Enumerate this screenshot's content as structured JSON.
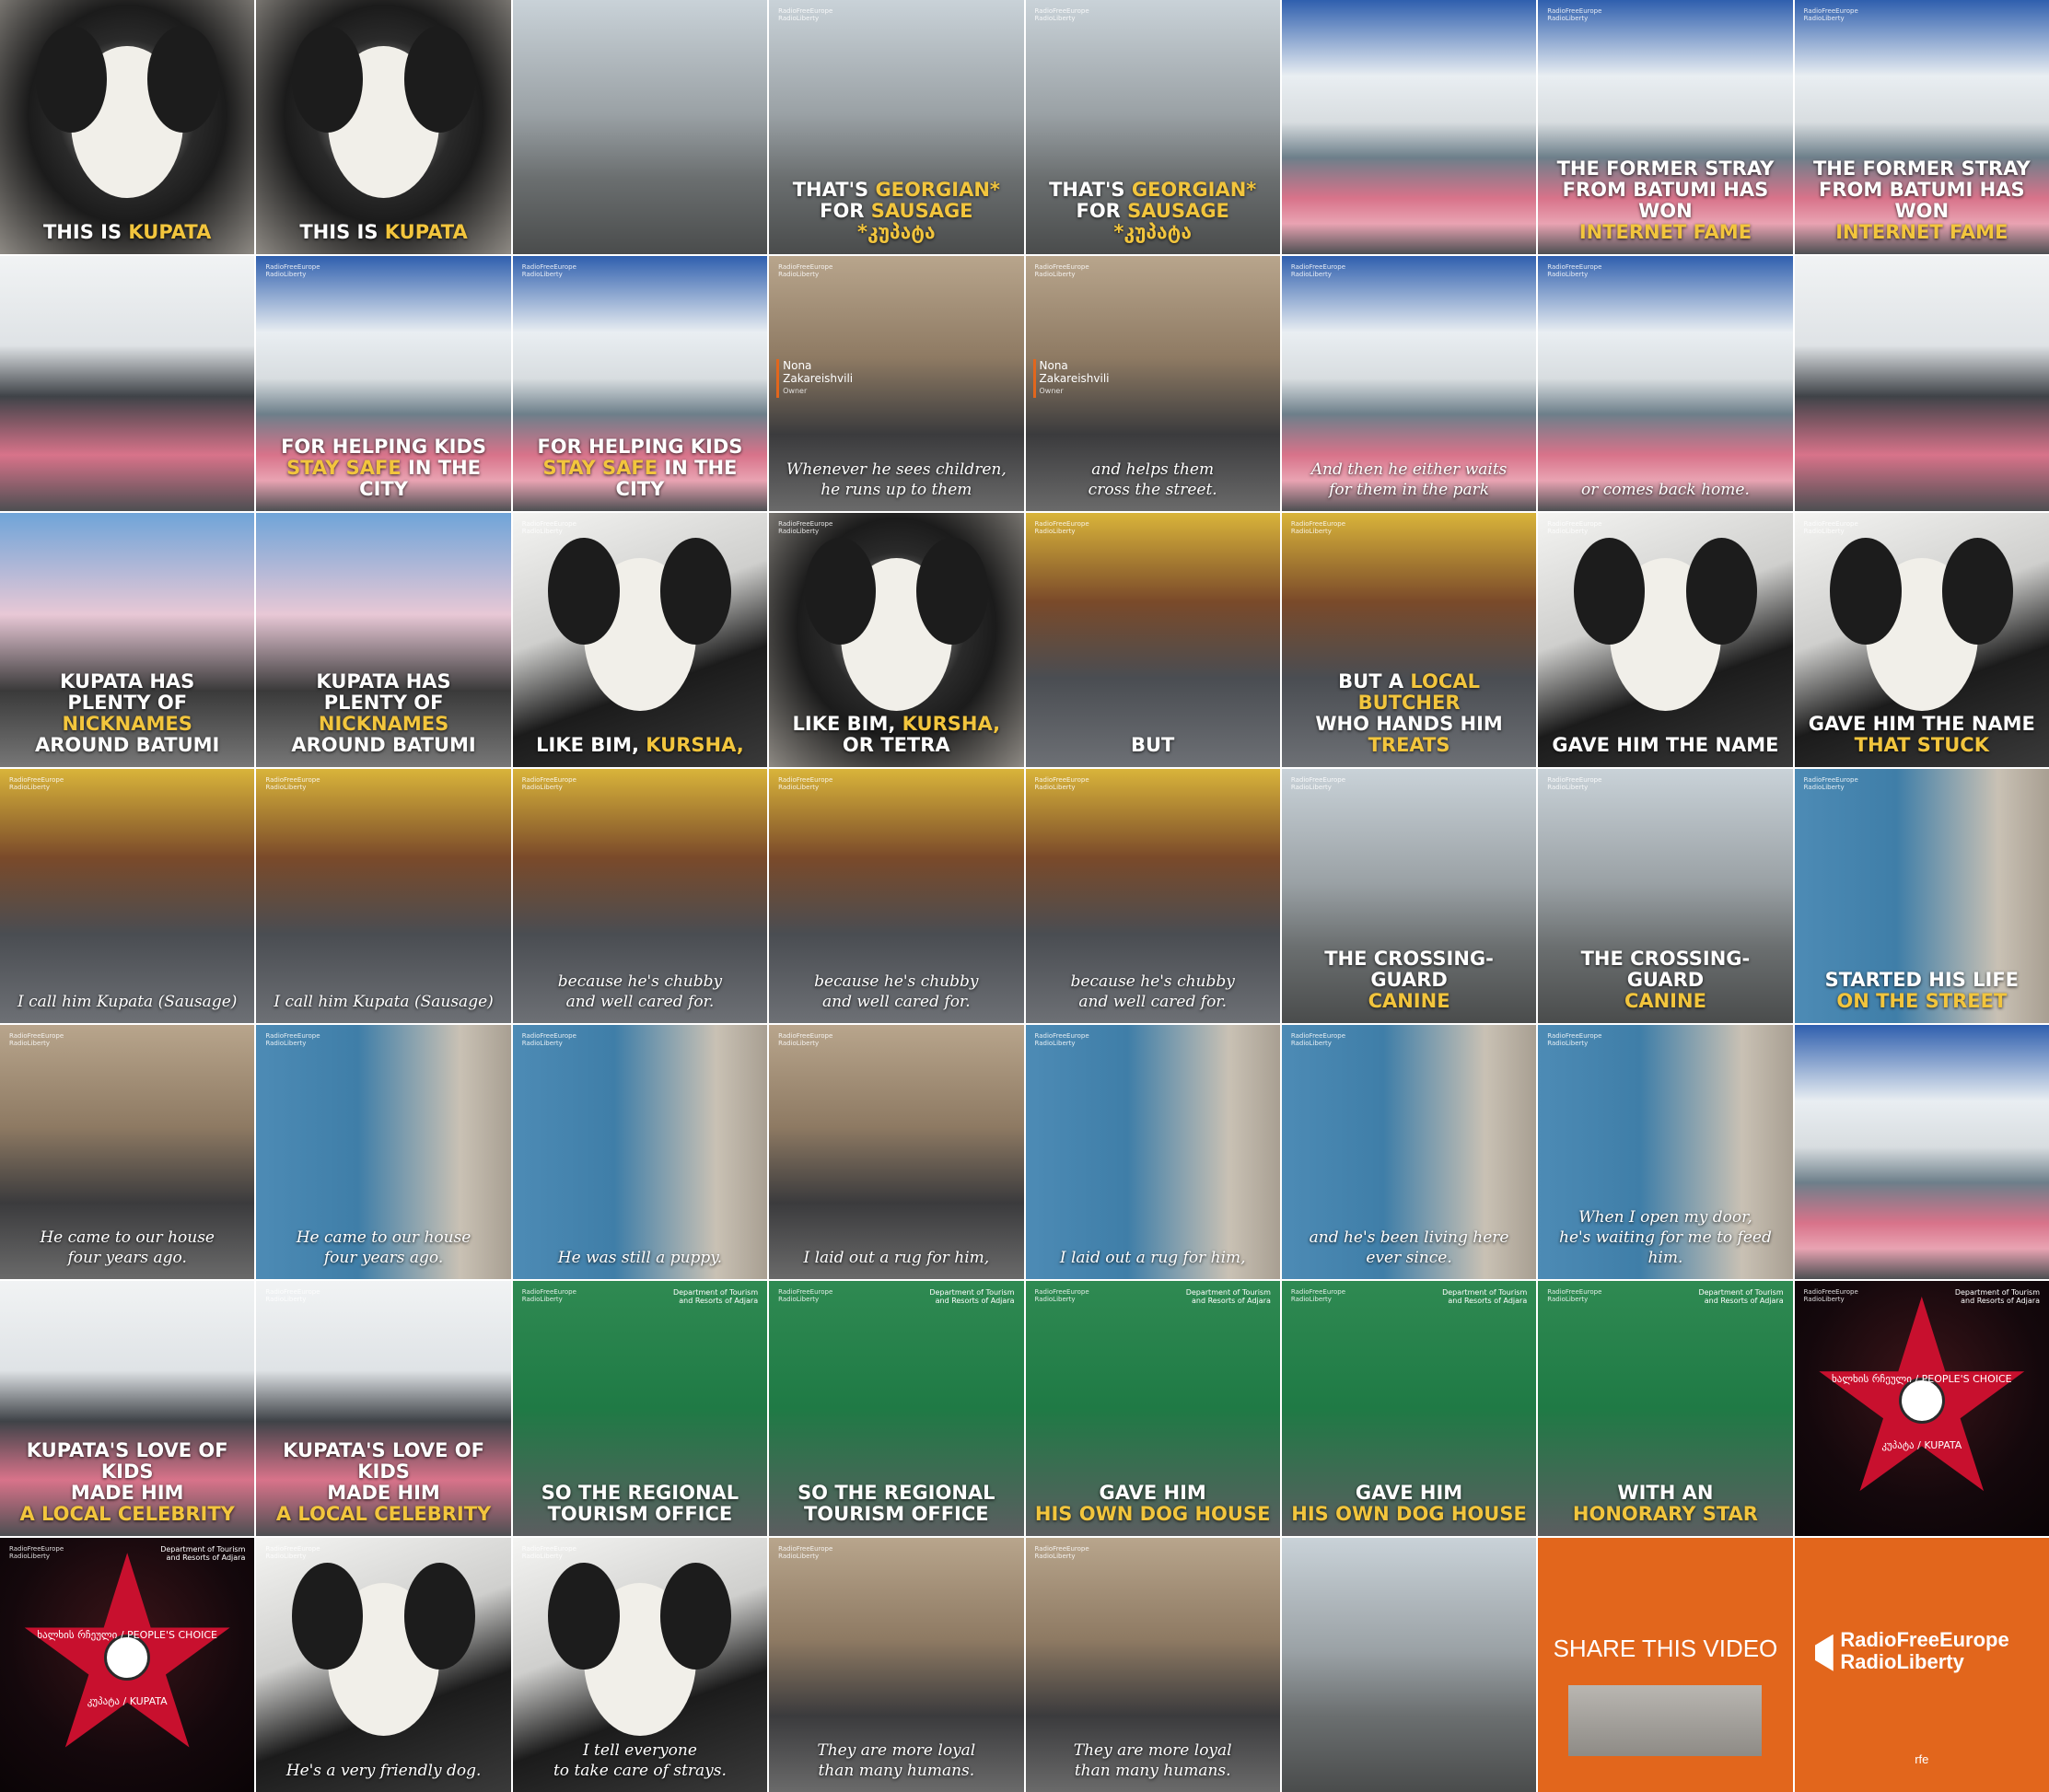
{
  "frames": [
    {
      "scene": "dog-close",
      "caption": [
        [
          "THIS IS ",
          ""
        ],
        [
          "KUPATA",
          "y"
        ]
      ]
    },
    {
      "scene": "dog-close",
      "caption": [
        [
          "THIS IS ",
          ""
        ],
        [
          "KUPATA",
          "y"
        ]
      ]
    },
    {
      "scene": "street"
    },
    {
      "scene": "street",
      "logo": true,
      "caption": [
        [
          "THAT'S ",
          ""
        ],
        [
          "GEORGIAN*",
          "y"
        ],
        [
          "\nFOR ",
          ""
        ],
        [
          "SAUSAGE",
          "y"
        ],
        [
          "\n*კუპატა",
          "y"
        ]
      ]
    },
    {
      "scene": "street",
      "logo": true,
      "caption": [
        [
          "THAT'S ",
          ""
        ],
        [
          "GEORGIAN*",
          "y"
        ],
        [
          "\nFOR ",
          ""
        ],
        [
          "SAUSAGE",
          "y"
        ],
        [
          "\n*კუპატა",
          "y"
        ]
      ]
    },
    {
      "scene": "crossing"
    },
    {
      "scene": "crossing",
      "logo": true,
      "caption": [
        [
          "THE FORMER STRAY\nFROM BATUMI HAS WON\n",
          ""
        ],
        [
          "INTERNET FAME",
          "y"
        ]
      ]
    },
    {
      "scene": "crossing",
      "logo": true,
      "caption": [
        [
          "THE FORMER STRAY\nFROM BATUMI HAS WON\n",
          ""
        ],
        [
          "INTERNET FAME",
          "y"
        ]
      ]
    },
    {
      "scene": "car"
    },
    {
      "scene": "crossing",
      "logo": true,
      "caption": [
        [
          "FOR HELPING KIDS\n",
          ""
        ],
        [
          "STAY SAFE",
          "y"
        ],
        [
          " IN THE CITY",
          ""
        ]
      ]
    },
    {
      "scene": "crossing",
      "logo": true,
      "caption": [
        [
          "FOR HELPING KIDS\n",
          ""
        ],
        [
          "STAY SAFE",
          "y"
        ],
        [
          " IN THE CITY",
          ""
        ]
      ]
    },
    {
      "scene": "person-w",
      "logo": true,
      "name": "Nona\nZakareishvili",
      "role": "Owner",
      "subtitle": "Whenever he sees children,\nhe runs up to them"
    },
    {
      "scene": "person-w",
      "logo": true,
      "name": "Nona\nZakareishvili",
      "role": "Owner",
      "subtitle": "and helps them\ncross the street."
    },
    {
      "scene": "crossing",
      "logo": true,
      "subtitle": "And then he either waits\nfor them in the park"
    },
    {
      "scene": "crossing",
      "logo": true,
      "subtitle": "or comes back home."
    },
    {
      "scene": "car"
    },
    {
      "scene": "kiosk",
      "caption": [
        [
          "KUPATA HAS\nPLENTY OF ",
          ""
        ],
        [
          "NICKNAMES",
          "y"
        ],
        [
          "\nAROUND BATUMI",
          ""
        ]
      ]
    },
    {
      "scene": "kiosk",
      "caption": [
        [
          "KUPATA HAS\nPLENTY OF ",
          ""
        ],
        [
          "NICKNAMES",
          "y"
        ],
        [
          "\nAROUND BATUMI",
          ""
        ]
      ]
    },
    {
      "scene": "closeup",
      "logo": true,
      "caption": [
        [
          "LIKE BIM, ",
          ""
        ],
        [
          "KURSHA,",
          "y"
        ]
      ]
    },
    {
      "scene": "dog-close",
      "logo": true,
      "caption": [
        [
          "LIKE BIM, ",
          ""
        ],
        [
          "KURSHA,",
          "y"
        ],
        [
          "\nOR TETRA",
          ""
        ]
      ]
    },
    {
      "scene": "butcher",
      "logo": true,
      "caption": [
        [
          "BUT",
          ""
        ]
      ]
    },
    {
      "scene": "butcher",
      "logo": true,
      "caption": [
        [
          "BUT A ",
          ""
        ],
        [
          "LOCAL BUTCHER",
          "y"
        ],
        [
          "\nWHO HANDS HIM ",
          ""
        ],
        [
          "TREATS",
          "y"
        ]
      ]
    },
    {
      "scene": "closeup",
      "logo": true,
      "caption": [
        [
          "GAVE HIM THE NAME",
          ""
        ]
      ]
    },
    {
      "scene": "closeup",
      "logo": true,
      "caption": [
        [
          "GAVE HIM THE NAME\n",
          ""
        ],
        [
          "THAT STUCK",
          "y"
        ]
      ]
    },
    {
      "scene": "butcher",
      "logo": true,
      "subtitle": "I call him Kupata (Sausage)"
    },
    {
      "scene": "butcher",
      "logo": true,
      "subtitle": "I call him Kupata (Sausage)"
    },
    {
      "scene": "butcher",
      "logo": true,
      "subtitle": "because he's chubby\nand well cared for."
    },
    {
      "scene": "butcher",
      "logo": true,
      "subtitle": "because he's chubby\nand well cared for."
    },
    {
      "scene": "butcher",
      "logo": true,
      "subtitle": "because he's chubby\nand well cared for."
    },
    {
      "scene": "street",
      "logo": true,
      "caption": [
        [
          "THE CROSSING-GUARD\n",
          ""
        ],
        [
          "CANINE",
          "y"
        ]
      ]
    },
    {
      "scene": "street",
      "logo": true,
      "caption": [
        [
          "THE CROSSING-GUARD\n",
          ""
        ],
        [
          "CANINE",
          "y"
        ]
      ]
    },
    {
      "scene": "blue-door",
      "logo": true,
      "caption": [
        [
          "STARTED HIS LIFE\n",
          ""
        ],
        [
          "ON THE STREET",
          "y"
        ]
      ]
    },
    {
      "scene": "person-w",
      "logo": true,
      "subtitle": "He came to our house\nfour years ago."
    },
    {
      "scene": "blue-door",
      "logo": true,
      "subtitle": "He came to our house\nfour years ago."
    },
    {
      "scene": "blue-door",
      "logo": true,
      "subtitle": "He was still a puppy."
    },
    {
      "scene": "person-w",
      "logo": true,
      "subtitle": "I laid out a rug for him,"
    },
    {
      "scene": "blue-door",
      "logo": true,
      "subtitle": "I laid out a rug for him,"
    },
    {
      "scene": "blue-door",
      "logo": true,
      "subtitle": "and he's been living here\never since."
    },
    {
      "scene": "blue-door",
      "logo": true,
      "subtitle": "When I open my door,\nhe's waiting for me to feed him."
    },
    {
      "scene": "crossing"
    },
    {
      "scene": "car",
      "caption": [
        [
          "KUPATA'S LOVE OF KIDS\nMADE HIM\n",
          ""
        ],
        [
          "A LOCAL CELEBRITY",
          "y"
        ]
      ]
    },
    {
      "scene": "car",
      "logo": true,
      "caption": [
        [
          "KUPATA'S LOVE OF KIDS\nMADE HIM\n",
          ""
        ],
        [
          "A LOCAL CELEBRITY",
          "y"
        ]
      ]
    },
    {
      "scene": "doghouse",
      "logo": true,
      "dept": "Department of Tourism\nand Resorts of Adjara",
      "caption": [
        [
          "SO THE REGIONAL\nTOURISM OFFICE",
          ""
        ]
      ]
    },
    {
      "scene": "doghouse",
      "logo": true,
      "dept": "Department of Tourism\nand Resorts of Adjara",
      "caption": [
        [
          "SO THE REGIONAL\nTOURISM OFFICE",
          ""
        ]
      ]
    },
    {
      "scene": "doghouse",
      "logo": true,
      "dept": "Department of Tourism\nand Resorts of Adjara",
      "caption": [
        [
          "GAVE HIM\n",
          ""
        ],
        [
          "HIS OWN DOG HOUSE",
          "y"
        ]
      ]
    },
    {
      "scene": "doghouse",
      "logo": true,
      "dept": "Department of Tourism\nand Resorts of Adjara",
      "caption": [
        [
          "GAVE HIM\n",
          ""
        ],
        [
          "HIS OWN DOG HOUSE",
          "y"
        ]
      ]
    },
    {
      "scene": "doghouse",
      "logo": true,
      "dept": "Department of Tourism\nand Resorts of Adjara",
      "caption": [
        [
          "WITH AN\n",
          ""
        ],
        [
          "HONORARY STAR",
          "y"
        ]
      ]
    },
    {
      "scene": "star",
      "logo": true,
      "dept": "Department of Tourism\nand Resorts of Adjara",
      "star_top": "ხალხის რჩეული / PEOPLE'S CHOICE",
      "star_bottom": "კუპატა / KUPATA"
    },
    {
      "scene": "star",
      "logo": true,
      "dept": "Department of Tourism\nand Resorts of Adjara",
      "star_top": "ხალხის რჩეული / PEOPLE'S CHOICE",
      "star_bottom": "კუპატა / KUPATA"
    },
    {
      "scene": "closeup",
      "logo": true,
      "subtitle": "He's a very friendly dog."
    },
    {
      "scene": "closeup",
      "logo": true,
      "subtitle": "I tell everyone\nto take care of strays."
    },
    {
      "scene": "person-w",
      "logo": true,
      "subtitle": "They are more loyal\nthan many humans."
    },
    {
      "scene": "person-w",
      "logo": true,
      "subtitle": "They are more loyal\nthan many humans."
    },
    {
      "scene": "street"
    },
    {
      "scene": "orange",
      "share": "SHARE THIS VIDEO"
    },
    {
      "scene": "orange",
      "rfe": "RadioFreeEurope\nRadioLiberty",
      "rfe_small": "rfe"
    }
  ],
  "logo_text": "RadioFreeEurope\nRadioLiberty"
}
